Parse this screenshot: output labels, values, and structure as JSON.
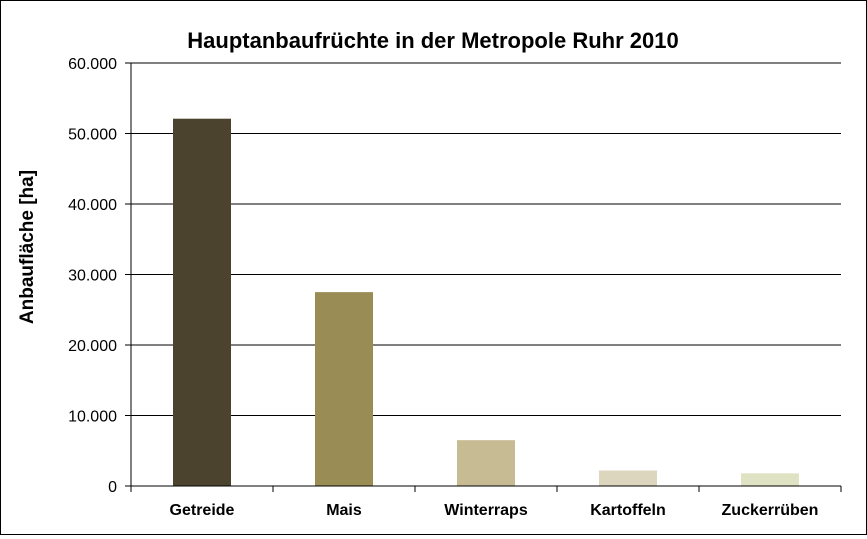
{
  "chart_data": {
    "type": "bar",
    "title": "Hauptanbaufrüchte in der Metropole Ruhr 2010",
    "xlabel": "",
    "ylabel": "Anbaufläche  [ha]",
    "categories": [
      "Getreide",
      "Mais",
      "Winterraps",
      "Kartoffeln",
      "Zuckerrüben"
    ],
    "values": [
      52100,
      27500,
      6500,
      2200,
      1800
    ],
    "bar_colors": [
      "#4b432d",
      "#9a8c55",
      "#c6bb93",
      "#ddd6bf",
      "#dfe2c3"
    ],
    "ylim": [
      0,
      60000
    ],
    "yticks": [
      {
        "value": 0,
        "label": "0"
      },
      {
        "value": 10000,
        "label": "10.000"
      },
      {
        "value": 20000,
        "label": "20.000"
      },
      {
        "value": 30000,
        "label": "30.000"
      },
      {
        "value": 40000,
        "label": "40.000"
      },
      {
        "value": 50000,
        "label": "50.000"
      },
      {
        "value": 60000,
        "label": "60.000"
      }
    ],
    "grid": true,
    "legend": "none"
  }
}
